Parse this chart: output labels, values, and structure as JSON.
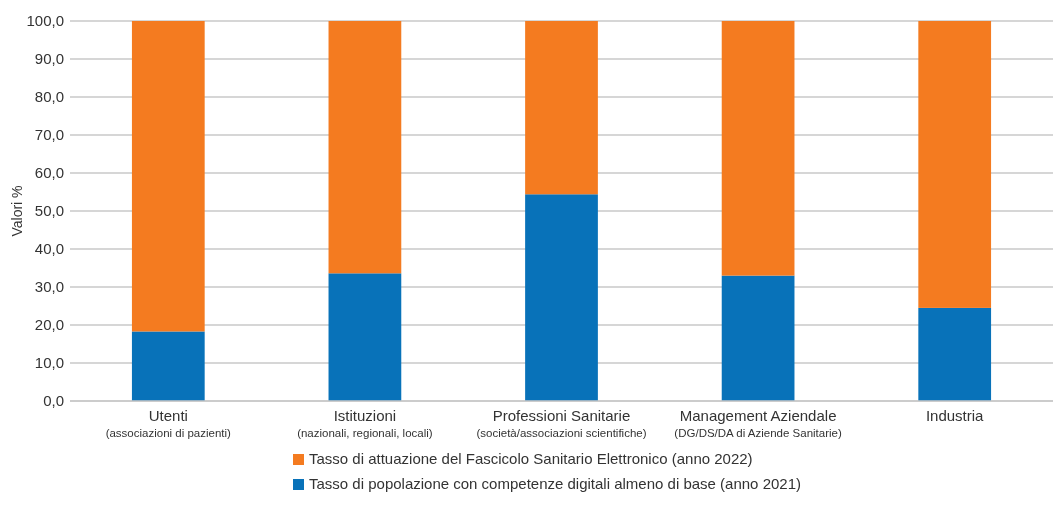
{
  "chart_data": {
    "type": "bar",
    "stacked": true,
    "ylabel": "Valori %",
    "categories": [
      "Utenti\n(associazioni di pazienti)",
      "Istituzioni\n(nazionali, regionali, locali)",
      "Professioni Sanitarie\n(società/associazioni scientifiche)",
      "Management Aziendale\n(DG/DS/DA di Aziende Sanitarie)",
      "Industria"
    ],
    "series": [
      {
        "name": "Tasso di popolazione con competenze digitali almeno di base (anno 2021)",
        "color": "#0872b9",
        "values": [
          18.3,
          33.6,
          54.4,
          33.0,
          24.5
        ]
      },
      {
        "name": "Tasso di attuazione del Fascicolo Sanitario Elettronico (anno 2022)",
        "color": "#f47b20",
        "values": [
          81.7,
          66.4,
          45.6,
          67.0,
          75.5
        ]
      }
    ],
    "ylim": [
      0,
      100
    ],
    "yticks": [
      {
        "value": 0,
        "label": "0,0"
      },
      {
        "value": 10,
        "label": "10,0"
      },
      {
        "value": 20,
        "label": "20,0"
      },
      {
        "value": 30,
        "label": "30,0"
      },
      {
        "value": 40,
        "label": "40,0"
      },
      {
        "value": 50,
        "label": "50,0"
      },
      {
        "value": 60,
        "label": "60,0"
      },
      {
        "value": 70,
        "label": "70,0"
      },
      {
        "value": 80,
        "label": "80,0"
      },
      {
        "value": 90,
        "label": "90,0"
      },
      {
        "value": 100,
        "label": "100,0"
      }
    ],
    "grid": "y",
    "legend": "bottom"
  }
}
